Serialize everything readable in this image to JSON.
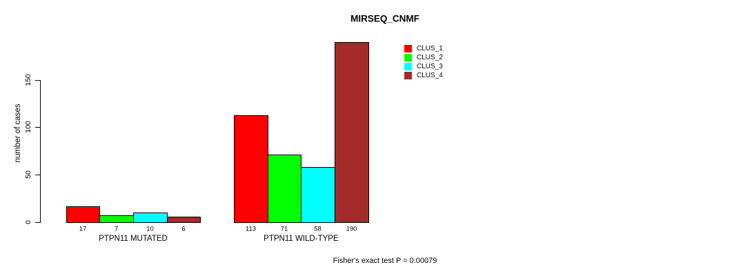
{
  "chart_data": {
    "type": "bar",
    "title": "MIRSEQ_CNMF",
    "xlabel": "",
    "ylabel": "number of cases",
    "ylim": [
      0,
      150
    ],
    "yticks": [
      0,
      50,
      100,
      150
    ],
    "grid": false,
    "categories": [
      "PTPN11 MUTATED",
      "PTPN11 WILD-TYPE"
    ],
    "series": [
      {
        "name": "CLUS_1",
        "color": "#ff0000",
        "values": [
          17,
          113
        ]
      },
      {
        "name": "CLUS_2",
        "color": "#00ff00",
        "values": [
          7,
          71
        ]
      },
      {
        "name": "CLUS_3",
        "color": "#00ffff",
        "values": [
          10,
          58
        ]
      },
      {
        "name": "CLUS_4",
        "color": "#a52a2a",
        "values": [
          6,
          190
        ]
      }
    ],
    "bar_value_labels": [
      [
        17,
        7,
        10,
        6
      ],
      [
        113,
        71,
        58,
        190
      ]
    ],
    "legend_position": "top-right",
    "legend": [
      "CLUS_1",
      "CLUS_2",
      "CLUS_3",
      "CLUS_4"
    ],
    "annotation": "Fisher's exact test P = 0.00079"
  },
  "colors": {
    "background": "#ffffff",
    "axis": "#000000",
    "text": "#000000"
  }
}
